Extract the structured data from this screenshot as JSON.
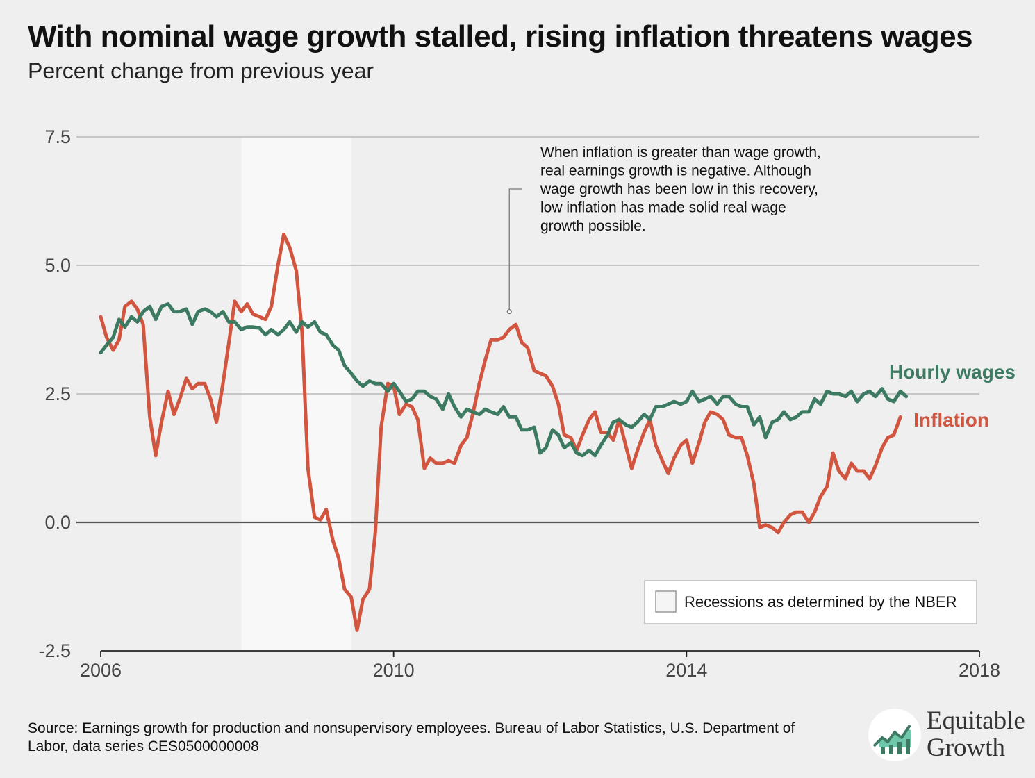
{
  "title": "With nominal wage growth stalled, rising inflation threatens wages",
  "subtitle": "Percent change from previous year",
  "source": "Source: Earnings growth for production and nonsupervisory employees. Bureau of Labor Statistics, U.S. Department of Labor, data series CES0500000008",
  "logo": {
    "line1": "Equitable",
    "line2": "Growth"
  },
  "annotation": {
    "lines": [
      "When inflation is greater than wage growth,",
      "real earnings growth is negative. Although",
      "wage growth has been low in this recovery,",
      "low inflation has made solid real wage",
      "growth possible."
    ]
  },
  "legend": {
    "label": "Recessions as determined by the NBER"
  },
  "colors": {
    "wages": "#3d7a62",
    "inflation": "#d1553f",
    "recession": "#f8f8f8",
    "grid": "#b9b9b9",
    "zero": "#555555"
  },
  "chart_data": {
    "type": "line",
    "title": "With nominal wage growth stalled, rising inflation threatens wages",
    "subtitle": "Percent change from previous year",
    "xlabel": "",
    "ylabel": "",
    "xlim": [
      2006,
      2018
    ],
    "ylim": [
      -2.5,
      7.5
    ],
    "xticks": [
      2006,
      2010,
      2014,
      2018
    ],
    "xtick_labels": [
      "2006",
      "2010",
      "2014",
      "2018"
    ],
    "yticks": [
      -2.5,
      0,
      2.5,
      5,
      7.5
    ],
    "ytick_labels": [
      "-2.5",
      "0.0",
      "2.5",
      "5.0",
      "7.5"
    ],
    "grid": true,
    "recession": {
      "start": 2007.92,
      "end": 2009.42
    },
    "annotation_point": {
      "x": 2011.58,
      "y": 4.1
    },
    "series": [
      {
        "name": "Hourly wages",
        "label_color": "#3d7a62",
        "points": [
          [
            2006.0,
            3.3
          ],
          [
            2006.08,
            3.45
          ],
          [
            2006.17,
            3.6
          ],
          [
            2006.25,
            3.95
          ],
          [
            2006.33,
            3.8
          ],
          [
            2006.42,
            4.0
          ],
          [
            2006.5,
            3.9
          ],
          [
            2006.58,
            4.1
          ],
          [
            2006.67,
            4.2
          ],
          [
            2006.75,
            3.95
          ],
          [
            2006.83,
            4.2
          ],
          [
            2006.92,
            4.25
          ],
          [
            2007.0,
            4.1
          ],
          [
            2007.08,
            4.1
          ],
          [
            2007.17,
            4.15
          ],
          [
            2007.25,
            3.85
          ],
          [
            2007.33,
            4.1
          ],
          [
            2007.42,
            4.15
          ],
          [
            2007.5,
            4.1
          ],
          [
            2007.58,
            4.0
          ],
          [
            2007.67,
            4.1
          ],
          [
            2007.75,
            3.9
          ],
          [
            2007.83,
            3.9
          ],
          [
            2007.92,
            3.75
          ],
          [
            2008.0,
            3.8
          ],
          [
            2008.08,
            3.8
          ],
          [
            2008.17,
            3.78
          ],
          [
            2008.25,
            3.65
          ],
          [
            2008.33,
            3.75
          ],
          [
            2008.42,
            3.65
          ],
          [
            2008.5,
            3.75
          ],
          [
            2008.58,
            3.9
          ],
          [
            2008.67,
            3.7
          ],
          [
            2008.75,
            3.9
          ],
          [
            2008.83,
            3.8
          ],
          [
            2008.92,
            3.9
          ],
          [
            2009.0,
            3.7
          ],
          [
            2009.08,
            3.65
          ],
          [
            2009.17,
            3.45
          ],
          [
            2009.25,
            3.35
          ],
          [
            2009.33,
            3.05
          ],
          [
            2009.42,
            2.9
          ],
          [
            2009.5,
            2.75
          ],
          [
            2009.58,
            2.65
          ],
          [
            2009.67,
            2.75
          ],
          [
            2009.75,
            2.7
          ],
          [
            2009.83,
            2.7
          ],
          [
            2009.92,
            2.55
          ],
          [
            2010.0,
            2.7
          ],
          [
            2010.08,
            2.55
          ],
          [
            2010.17,
            2.35
          ],
          [
            2010.25,
            2.4
          ],
          [
            2010.33,
            2.55
          ],
          [
            2010.42,
            2.55
          ],
          [
            2010.5,
            2.45
          ],
          [
            2010.58,
            2.4
          ],
          [
            2010.67,
            2.2
          ],
          [
            2010.75,
            2.5
          ],
          [
            2010.83,
            2.25
          ],
          [
            2010.92,
            2.05
          ],
          [
            2011.0,
            2.2
          ],
          [
            2011.08,
            2.15
          ],
          [
            2011.17,
            2.1
          ],
          [
            2011.25,
            2.2
          ],
          [
            2011.33,
            2.15
          ],
          [
            2011.42,
            2.1
          ],
          [
            2011.5,
            2.25
          ],
          [
            2011.58,
            2.05
          ],
          [
            2011.67,
            2.05
          ],
          [
            2011.75,
            1.8
          ],
          [
            2011.83,
            1.8
          ],
          [
            2011.92,
            1.85
          ],
          [
            2012.0,
            1.35
          ],
          [
            2012.08,
            1.45
          ],
          [
            2012.17,
            1.8
          ],
          [
            2012.25,
            1.7
          ],
          [
            2012.33,
            1.45
          ],
          [
            2012.42,
            1.55
          ],
          [
            2012.5,
            1.35
          ],
          [
            2012.58,
            1.3
          ],
          [
            2012.67,
            1.4
          ],
          [
            2012.75,
            1.3
          ],
          [
            2012.83,
            1.5
          ],
          [
            2012.92,
            1.7
          ],
          [
            2013.0,
            1.95
          ],
          [
            2013.08,
            2.0
          ],
          [
            2013.17,
            1.9
          ],
          [
            2013.25,
            1.85
          ],
          [
            2013.33,
            1.95
          ],
          [
            2013.42,
            2.1
          ],
          [
            2013.5,
            2.0
          ],
          [
            2013.58,
            2.25
          ],
          [
            2013.67,
            2.25
          ],
          [
            2013.75,
            2.3
          ],
          [
            2013.83,
            2.35
          ],
          [
            2013.92,
            2.3
          ],
          [
            2014.0,
            2.35
          ],
          [
            2014.08,
            2.55
          ],
          [
            2014.17,
            2.35
          ],
          [
            2014.25,
            2.4
          ],
          [
            2014.33,
            2.45
          ],
          [
            2014.42,
            2.3
          ],
          [
            2014.5,
            2.45
          ],
          [
            2014.58,
            2.45
          ],
          [
            2014.67,
            2.3
          ],
          [
            2014.75,
            2.25
          ],
          [
            2014.83,
            2.25
          ],
          [
            2014.92,
            1.9
          ],
          [
            2015.0,
            2.05
          ],
          [
            2015.08,
            1.65
          ],
          [
            2015.17,
            1.95
          ],
          [
            2015.25,
            2.0
          ],
          [
            2015.33,
            2.15
          ],
          [
            2015.42,
            2.0
          ],
          [
            2015.5,
            2.05
          ],
          [
            2015.58,
            2.15
          ],
          [
            2015.67,
            2.15
          ],
          [
            2015.75,
            2.4
          ],
          [
            2015.83,
            2.3
          ],
          [
            2015.92,
            2.55
          ],
          [
            2016.0,
            2.5
          ],
          [
            2016.08,
            2.5
          ],
          [
            2016.17,
            2.45
          ],
          [
            2016.25,
            2.55
          ],
          [
            2016.33,
            2.35
          ],
          [
            2016.42,
            2.5
          ],
          [
            2016.5,
            2.55
          ],
          [
            2016.58,
            2.45
          ],
          [
            2016.67,
            2.6
          ],
          [
            2016.75,
            2.4
          ],
          [
            2016.83,
            2.35
          ],
          [
            2016.92,
            2.55
          ],
          [
            2017.0,
            2.45
          ]
        ]
      },
      {
        "name": "Inflation",
        "label_color": "#d1553f",
        "points": [
          [
            2006.0,
            4.0
          ],
          [
            2006.08,
            3.6
          ],
          [
            2006.17,
            3.35
          ],
          [
            2006.25,
            3.55
          ],
          [
            2006.33,
            4.2
          ],
          [
            2006.42,
            4.3
          ],
          [
            2006.5,
            4.15
          ],
          [
            2006.58,
            3.85
          ],
          [
            2006.67,
            2.05
          ],
          [
            2006.75,
            1.3
          ],
          [
            2006.83,
            1.95
          ],
          [
            2006.92,
            2.55
          ],
          [
            2007.0,
            2.1
          ],
          [
            2007.08,
            2.4
          ],
          [
            2007.17,
            2.8
          ],
          [
            2007.25,
            2.6
          ],
          [
            2007.33,
            2.7
          ],
          [
            2007.42,
            2.7
          ],
          [
            2007.5,
            2.4
          ],
          [
            2007.58,
            1.95
          ],
          [
            2007.67,
            2.7
          ],
          [
            2007.75,
            3.5
          ],
          [
            2007.83,
            4.3
          ],
          [
            2007.92,
            4.1
          ],
          [
            2008.0,
            4.25
          ],
          [
            2008.08,
            4.05
          ],
          [
            2008.17,
            4.0
          ],
          [
            2008.25,
            3.95
          ],
          [
            2008.33,
            4.2
          ],
          [
            2008.42,
            5.0
          ],
          [
            2008.5,
            5.6
          ],
          [
            2008.58,
            5.35
          ],
          [
            2008.67,
            4.9
          ],
          [
            2008.75,
            3.7
          ],
          [
            2008.83,
            1.05
          ],
          [
            2008.92,
            0.1
          ],
          [
            2009.0,
            0.05
          ],
          [
            2009.08,
            0.25
          ],
          [
            2009.17,
            -0.35
          ],
          [
            2009.25,
            -0.7
          ],
          [
            2009.33,
            -1.3
          ],
          [
            2009.42,
            -1.45
          ],
          [
            2009.5,
            -2.1
          ],
          [
            2009.58,
            -1.5
          ],
          [
            2009.67,
            -1.3
          ],
          [
            2009.75,
            -0.2
          ],
          [
            2009.83,
            1.85
          ],
          [
            2009.92,
            2.7
          ],
          [
            2010.0,
            2.65
          ],
          [
            2010.08,
            2.1
          ],
          [
            2010.17,
            2.3
          ],
          [
            2010.25,
            2.25
          ],
          [
            2010.33,
            2.0
          ],
          [
            2010.42,
            1.05
          ],
          [
            2010.5,
            1.25
          ],
          [
            2010.58,
            1.15
          ],
          [
            2010.67,
            1.15
          ],
          [
            2010.75,
            1.2
          ],
          [
            2010.83,
            1.15
          ],
          [
            2010.92,
            1.5
          ],
          [
            2011.0,
            1.65
          ],
          [
            2011.08,
            2.1
          ],
          [
            2011.17,
            2.7
          ],
          [
            2011.25,
            3.15
          ],
          [
            2011.33,
            3.55
          ],
          [
            2011.42,
            3.55
          ],
          [
            2011.5,
            3.6
          ],
          [
            2011.58,
            3.75
          ],
          [
            2011.67,
            3.85
          ],
          [
            2011.75,
            3.5
          ],
          [
            2011.83,
            3.4
          ],
          [
            2011.92,
            2.95
          ],
          [
            2012.0,
            2.9
          ],
          [
            2012.08,
            2.85
          ],
          [
            2012.17,
            2.65
          ],
          [
            2012.25,
            2.3
          ],
          [
            2012.33,
            1.7
          ],
          [
            2012.42,
            1.65
          ],
          [
            2012.5,
            1.4
          ],
          [
            2012.58,
            1.7
          ],
          [
            2012.67,
            2.0
          ],
          [
            2012.75,
            2.15
          ],
          [
            2012.83,
            1.75
          ],
          [
            2012.92,
            1.75
          ],
          [
            2013.0,
            1.6
          ],
          [
            2013.08,
            2.0
          ],
          [
            2013.17,
            1.5
          ],
          [
            2013.25,
            1.05
          ],
          [
            2013.33,
            1.4
          ],
          [
            2013.42,
            1.75
          ],
          [
            2013.5,
            2.0
          ],
          [
            2013.58,
            1.5
          ],
          [
            2013.67,
            1.2
          ],
          [
            2013.75,
            0.95
          ],
          [
            2013.83,
            1.25
          ],
          [
            2013.92,
            1.5
          ],
          [
            2014.0,
            1.6
          ],
          [
            2014.08,
            1.15
          ],
          [
            2014.17,
            1.55
          ],
          [
            2014.25,
            1.95
          ],
          [
            2014.33,
            2.15
          ],
          [
            2014.42,
            2.1
          ],
          [
            2014.5,
            2.0
          ],
          [
            2014.58,
            1.7
          ],
          [
            2014.67,
            1.65
          ],
          [
            2014.75,
            1.65
          ],
          [
            2014.83,
            1.3
          ],
          [
            2014.92,
            0.75
          ],
          [
            2015.0,
            -0.1
          ],
          [
            2015.08,
            -0.05
          ],
          [
            2015.17,
            -0.1
          ],
          [
            2015.25,
            -0.2
          ],
          [
            2015.33,
            0.0
          ],
          [
            2015.42,
            0.15
          ],
          [
            2015.5,
            0.2
          ],
          [
            2015.58,
            0.2
          ],
          [
            2015.67,
            0.0
          ],
          [
            2015.75,
            0.2
          ],
          [
            2015.83,
            0.5
          ],
          [
            2015.92,
            0.7
          ],
          [
            2016.0,
            1.35
          ],
          [
            2016.08,
            1.0
          ],
          [
            2016.17,
            0.85
          ],
          [
            2016.25,
            1.15
          ],
          [
            2016.33,
            1.0
          ],
          [
            2016.42,
            1.0
          ],
          [
            2016.5,
            0.85
          ],
          [
            2016.58,
            1.1
          ],
          [
            2016.67,
            1.45
          ],
          [
            2016.75,
            1.65
          ],
          [
            2016.83,
            1.7
          ],
          [
            2016.92,
            2.05
          ]
        ]
      }
    ]
  }
}
